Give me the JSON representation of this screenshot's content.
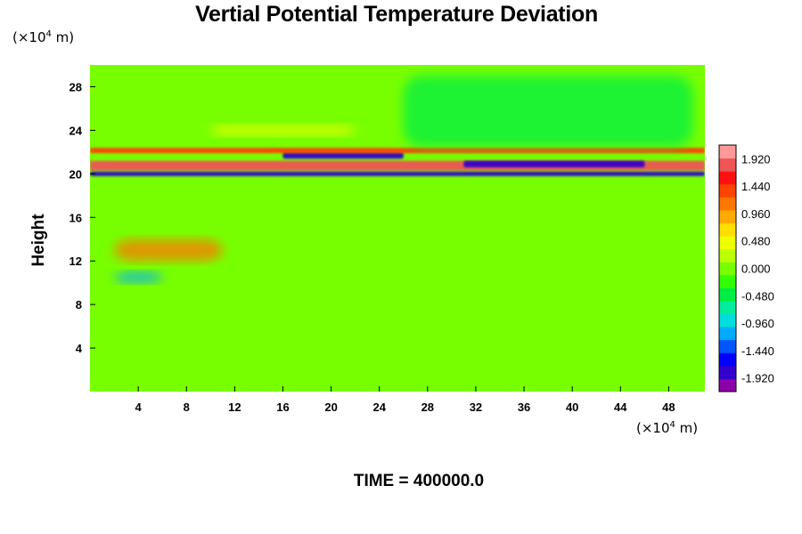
{
  "chart_data": {
    "type": "heatmap",
    "title": "Vertial Potential Temperature Deviation",
    "ylabel": "Height",
    "x_unit_prefix": "(×10",
    "x_unit_exp": "4",
    "x_unit_suffix": " m)",
    "y_unit_prefix": "(×10",
    "y_unit_exp": "4",
    "y_unit_suffix": " m)",
    "xlim": [
      0,
      51
    ],
    "ylim": [
      0,
      30
    ],
    "xticks": [
      "4",
      "8",
      "12",
      "16",
      "20",
      "24",
      "28",
      "32",
      "36",
      "40",
      "44",
      "48"
    ],
    "yticks": [
      "4",
      "8",
      "12",
      "16",
      "20",
      "24",
      "28"
    ],
    "colorbar": {
      "min": -2.16,
      "max": 2.16,
      "ticks": [
        "1.920",
        "1.440",
        "0.960",
        "0.480",
        "0.000",
        "-0.480",
        "-0.960",
        "-1.440",
        "-1.920"
      ],
      "colors": [
        "#8b00aa",
        "#3300cc",
        "#0000ff",
        "#0055ff",
        "#00aaff",
        "#00dddd",
        "#00ee99",
        "#00ee44",
        "#33ff00",
        "#77ff00",
        "#bbff00",
        "#eeff00",
        "#ffdd00",
        "#ffaa00",
        "#ff7700",
        "#ff4400",
        "#ff1111",
        "#ee5555",
        "#ff9999"
      ]
    },
    "background_value": 0.0,
    "features": [
      {
        "name": "warm layer",
        "x": [
          0,
          51
        ],
        "y": [
          20.3,
          21.2
        ],
        "value": 1.92
      },
      {
        "name": "cold layer",
        "x": [
          0,
          51
        ],
        "y": [
          19.8,
          20.2
        ],
        "value": -1.92
      },
      {
        "name": "cold band",
        "x": [
          16,
          26
        ],
        "y": [
          21.4,
          22.0
        ],
        "value": -1.92
      },
      {
        "name": "cold band",
        "x": [
          31,
          46
        ],
        "y": [
          20.6,
          21.2
        ],
        "value": -1.92
      },
      {
        "name": "warm top",
        "x": [
          0,
          51
        ],
        "y": [
          21.9,
          22.4
        ],
        "value": 1.44
      },
      {
        "name": "warm patch",
        "x": [
          10,
          22
        ],
        "y": [
          23.5,
          24.5
        ],
        "value": 0.48
      },
      {
        "name": "cool region",
        "x": [
          26,
          50
        ],
        "y": [
          22.5,
          29
        ],
        "value": -0.48
      },
      {
        "name": "warm blobs",
        "x": [
          2,
          11
        ],
        "y": [
          12,
          14
        ],
        "value": 1.2
      },
      {
        "name": "cold spot",
        "x": [
          2,
          6
        ],
        "y": [
          10,
          11
        ],
        "value": -1.2
      }
    ]
  },
  "footer": {
    "time_label": "TIME = 400000.0"
  }
}
